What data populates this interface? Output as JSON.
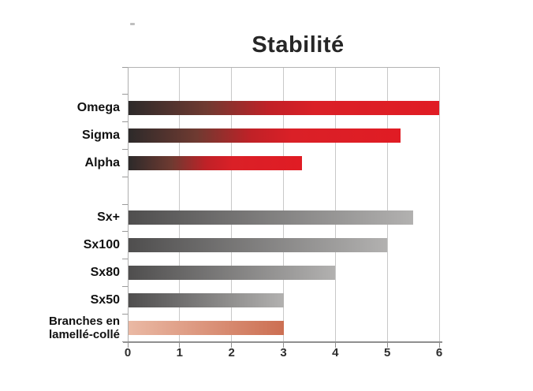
{
  "chart_data": {
    "type": "bar",
    "orientation": "horizontal",
    "title": "Stabilité",
    "xlabel": "",
    "ylabel": "",
    "xlim": [
      0,
      6
    ],
    "x_ticks": [
      0,
      1,
      2,
      3,
      4,
      5,
      6
    ],
    "grid": "vertical",
    "legend": "none",
    "rows_total": 10,
    "categories": [
      "Omega",
      "Sigma",
      "Alpha",
      "Sx+",
      "Sx100",
      "Sx80",
      "Sx50",
      "Branches en lamellé-collé"
    ],
    "values": [
      6,
      5.25,
      3.35,
      5.5,
      5,
      4,
      3,
      3
    ],
    "series": [
      {
        "label": "Omega",
        "value": 6,
        "palette": "red",
        "row": 1
      },
      {
        "label": "Sigma",
        "value": 5.25,
        "palette": "red",
        "row": 2
      },
      {
        "label": "Alpha",
        "value": 3.35,
        "palette": "red",
        "row": 3
      },
      {
        "label": "Sx+",
        "value": 5.5,
        "palette": "grey",
        "row": 5
      },
      {
        "label": "Sx100",
        "value": 5,
        "palette": "grey",
        "row": 6
      },
      {
        "label": "Sx80",
        "value": 4,
        "palette": "grey",
        "row": 7
      },
      {
        "label": "Sx50",
        "value": 3,
        "palette": "grey",
        "row": 8
      },
      {
        "label": "Branches en lamellé-collé",
        "value": 3,
        "palette": "salmon",
        "row": 9,
        "lines": [
          "Branches en",
          "lamellé-collé"
        ]
      }
    ],
    "palettes": {
      "red": [
        [
          "#2d2a2a",
          0
        ],
        [
          "#6f3a31",
          25
        ],
        [
          "#c02127",
          45
        ],
        [
          "#da2027",
          60
        ],
        [
          "#e01c24",
          100
        ]
      ],
      "grey": [
        [
          "#4f4e4e",
          0
        ],
        [
          "#b2b1b0",
          100
        ]
      ],
      "salmon": [
        [
          "#eab9a4",
          0
        ],
        [
          "#cc6f52",
          100
        ]
      ]
    },
    "colors": {
      "gridline": "#c8c8c8",
      "axis_line": "#8f8f8f",
      "frame": "#b3b3b3",
      "tick_label": "#2d2d2d",
      "category_label": "#111111",
      "title": "#262626"
    }
  }
}
